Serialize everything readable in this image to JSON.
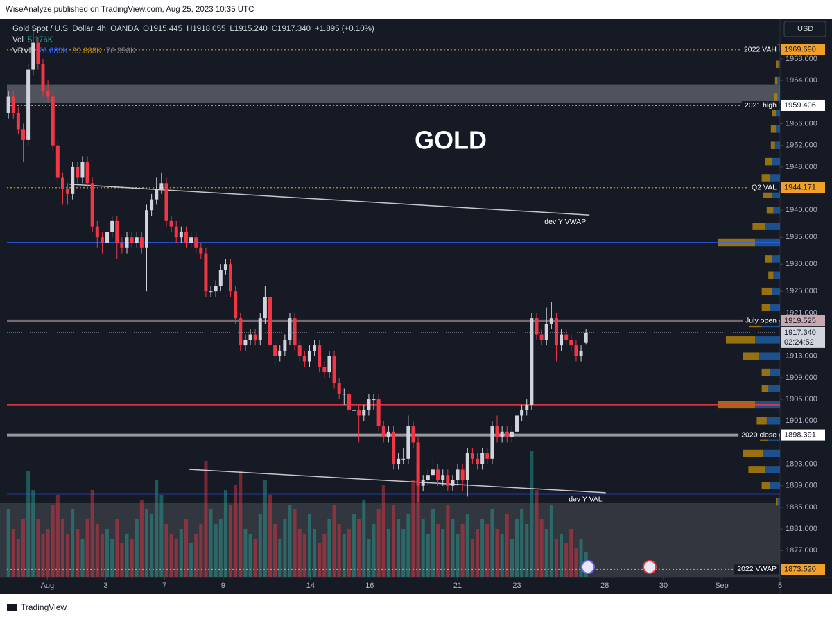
{
  "chart_data": {
    "type": "candlestick",
    "title": "GOLD",
    "publisher": "WiseAnalyze published on TradingView.com, Aug 25, 2023 10:35 UTC",
    "symbol": "Gold Spot / U.S. Dollar, 4h, OANDA",
    "ohlc_text": [
      "O1915.445",
      "H1918.055",
      "L1915.240",
      "C1917.340",
      "+1.895 (+0.10%)"
    ],
    "volume_legend": {
      "name": "Vol",
      "value": "5.176K"
    },
    "vrvp_legend": {
      "name": "VRVP",
      "values": [
        "76.689K",
        "39.888K",
        "76.356K"
      ]
    },
    "currency": "USD",
    "brand": "TradingView",
    "up_color": "#d1d4dc",
    "down_color": "#f23645",
    "volume_up_color": "#26a69a",
    "volume_down_color": "#f23645",
    "xlim": [
      -0.3,
      156.3
    ],
    "xticks": [
      {
        "value": 7.9,
        "label": "Aug"
      },
      {
        "value": 19.7,
        "label": "3"
      },
      {
        "value": 31.6,
        "label": "7"
      },
      {
        "value": 43.5,
        "label": "9"
      },
      {
        "value": 61.2,
        "label": "14"
      },
      {
        "value": 73.2,
        "label": "16"
      },
      {
        "value": 91.0,
        "label": "21"
      },
      {
        "value": 103.0,
        "label": "23"
      },
      {
        "value": 120.8,
        "label": "28"
      },
      {
        "value": 132.7,
        "label": "30"
      },
      {
        "value": 144.5,
        "label": "Sep"
      },
      {
        "value": 156.3,
        "label": "5"
      }
    ],
    "ylim": [
      1872.04,
      1975.31
    ],
    "yticks": [
      {
        "value": 1968,
        "label": "1968.000"
      },
      {
        "value": 1964,
        "label": "1964.000"
      },
      {
        "value": 1956,
        "label": "1956.000"
      },
      {
        "value": 1952,
        "label": "1952.000"
      },
      {
        "value": 1948,
        "label": "1948.000"
      },
      {
        "value": 1940,
        "label": "1940.000"
      },
      {
        "value": 1935,
        "label": "1935.000"
      },
      {
        "value": 1930,
        "label": "1930.000"
      },
      {
        "value": 1925,
        "label": "1925.000"
      },
      {
        "value": 1921,
        "label": "1921.000"
      },
      {
        "value": 1913,
        "label": "1913.000"
      },
      {
        "value": 1909,
        "label": "1909.000"
      },
      {
        "value": 1905,
        "label": "1905.000"
      },
      {
        "value": 1901,
        "label": "1901.000"
      },
      {
        "value": 1893,
        "label": "1893.000"
      },
      {
        "value": 1889,
        "label": "1889.000"
      },
      {
        "value": 1885,
        "label": "1885.000"
      },
      {
        "value": 1881,
        "label": "1881.000"
      },
      {
        "value": 1877,
        "label": "1877.000"
      }
    ],
    "grid": false,
    "candles": {
      "open": [
        1958,
        1961,
        1958,
        1955,
        1953,
        1966,
        1971,
        1967,
        1962,
        1961,
        1952,
        1946,
        1944,
        1943,
        1948,
        1946,
        1949,
        1945,
        1937,
        1935,
        1934,
        1936,
        1938,
        1934,
        1933,
        1935,
        1934,
        1935,
        1933,
        1940,
        1942,
        1944,
        1945,
        1938,
        1937,
        1935,
        1936,
        1934,
        1935,
        1933,
        1932,
        1925,
        1925,
        1926,
        1929,
        1930,
        1925,
        1920,
        1915,
        1916,
        1917,
        1916,
        1920,
        1924,
        1915,
        1913,
        1914,
        1916,
        1920,
        1915,
        1913,
        1912,
        1914,
        1915,
        1911,
        1910,
        1913,
        1908,
        1906,
        1906,
        1903,
        1903,
        1902,
        1903,
        1905,
        1905,
        1900,
        1898,
        1899,
        1893,
        1894,
        1894,
        1900,
        1897,
        1889,
        1890,
        1891,
        1892,
        1890,
        1891,
        1889,
        1890,
        1892,
        1890,
        1895,
        1894,
        1893,
        1895,
        1894,
        1900,
        1898,
        1899,
        1898,
        1899,
        1902,
        1903,
        1904,
        1920,
        1917,
        1916,
        1919,
        1920,
        1915,
        1917,
        1916,
        1915,
        1913,
        1915.445
      ],
      "high": [
        1962,
        1962,
        1959,
        1956,
        1967,
        1974,
        1972,
        1968,
        1964,
        1962,
        1953,
        1947,
        1945,
        1949,
        1949,
        1950,
        1950,
        1946,
        1938,
        1936,
        1937,
        1939,
        1939,
        1935,
        1936,
        1936,
        1936,
        1936,
        1941,
        1943,
        1946,
        1947,
        1946,
        1939,
        1938,
        1937,
        1937,
        1936,
        1936,
        1934,
        1933,
        1926,
        1927,
        1930,
        1931,
        1931,
        1926,
        1921,
        1917,
        1918,
        1918,
        1921,
        1926,
        1925,
        1916,
        1915,
        1917,
        1921,
        1921,
        1916,
        1914,
        1915,
        1916,
        1916,
        1912,
        1914,
        1914,
        1909,
        1907,
        1907,
        1904,
        1904,
        1904,
        1906,
        1906,
        1906,
        1901,
        1900,
        1900,
        1895,
        1896,
        1902,
        1901,
        1898,
        1891,
        1892,
        1894,
        1893,
        1892,
        1892,
        1891,
        1893,
        1893,
        1896,
        1896,
        1895,
        1896,
        1896,
        1901,
        1902,
        1900,
        1900,
        1900,
        1903,
        1904,
        1905,
        1921,
        1921,
        1918,
        1922,
        1923,
        1921,
        1918,
        1918,
        1917,
        1916,
        1915,
        1918.055
      ],
      "low": [
        1957,
        1957,
        1954,
        1949,
        1952,
        1965,
        1966,
        1961,
        1960,
        1951,
        1945,
        1941,
        1941,
        1942,
        1945,
        1945,
        1944,
        1936,
        1933,
        1932,
        1933,
        1935,
        1931,
        1932,
        1932,
        1933,
        1933,
        1932,
        1925,
        1939,
        1941,
        1943,
        1937,
        1936,
        1934,
        1934,
        1933,
        1933,
        1932,
        1931,
        1924,
        1924,
        1924,
        1925,
        1928,
        1924,
        1919,
        1914,
        1914,
        1915,
        1915,
        1915,
        1919,
        1914,
        1911,
        1912,
        1913,
        1915,
        1914,
        1912,
        1911,
        1911,
        1913,
        1910,
        1909,
        1909,
        1907,
        1905,
        1904,
        1902,
        1902,
        1897,
        1901,
        1902,
        1903,
        1899,
        1897,
        1897,
        1892,
        1892,
        1893,
        1893,
        1896,
        1886,
        1888,
        1889,
        1890,
        1889,
        1889,
        1888,
        1888,
        1889,
        1888,
        1887,
        1893,
        1892,
        1892,
        1893,
        1893,
        1897,
        1897,
        1897,
        1897,
        1898,
        1901,
        1902,
        1903,
        1916,
        1915,
        1915,
        1918,
        1912,
        1914,
        1915,
        1914,
        1912,
        1912,
        1915.24
      ],
      "close": [
        1961,
        1958,
        1955,
        1953,
        1966,
        1971,
        1967,
        1962,
        1961,
        1952,
        1946,
        1944,
        1943,
        1948,
        1946,
        1949,
        1945,
        1937,
        1935,
        1934,
        1936,
        1938,
        1934,
        1933,
        1935,
        1934,
        1935,
        1933,
        1940,
        1942,
        1944,
        1945,
        1938,
        1937,
        1935,
        1936,
        1934,
        1935,
        1933,
        1932,
        1925,
        1925,
        1926,
        1929,
        1930,
        1925,
        1920,
        1915,
        1916,
        1917,
        1916,
        1920,
        1924,
        1915,
        1913,
        1914,
        1916,
        1920,
        1915,
        1913,
        1912,
        1914,
        1915,
        1911,
        1910,
        1913,
        1908,
        1906,
        1906,
        1903,
        1903,
        1902,
        1903,
        1905,
        1905,
        1900,
        1898,
        1899,
        1893,
        1894,
        1894,
        1900,
        1897,
        1889,
        1890,
        1891,
        1892,
        1890,
        1891,
        1889,
        1890,
        1892,
        1890,
        1895,
        1894,
        1893,
        1895,
        1894,
        1900,
        1898,
        1899,
        1898,
        1899,
        1902,
        1903,
        1904,
        1920,
        1917,
        1916,
        1919,
        1920,
        1915,
        1917,
        1916,
        1915,
        1913,
        1914,
        1917.34
      ],
      "volume": [
        14,
        10,
        8,
        12,
        22,
        18,
        12,
        9,
        10,
        15,
        17,
        12,
        9,
        14,
        10,
        8,
        12,
        18,
        11,
        9,
        10,
        8,
        12,
        7,
        9,
        8,
        12,
        16,
        14,
        13,
        20,
        17,
        11,
        9,
        8,
        10,
        12,
        7,
        9,
        11,
        24,
        14,
        11,
        12,
        18,
        15,
        19,
        22,
        10,
        9,
        8,
        13,
        20,
        17,
        11,
        8,
        12,
        15,
        14,
        10,
        9,
        13,
        10,
        7,
        9,
        12,
        15,
        11,
        9,
        10,
        13,
        12,
        16,
        8,
        11,
        14,
        19,
        10,
        15,
        12,
        10,
        13,
        20,
        24,
        12,
        9,
        14,
        11,
        10,
        15,
        12,
        9,
        11,
        13,
        8,
        10,
        12,
        11,
        14,
        10,
        9,
        13,
        8,
        12,
        14,
        11,
        26,
        18,
        12,
        10,
        15,
        8,
        9,
        7,
        10,
        6,
        8,
        5.176
      ]
    },
    "volume_lim": [
      0,
      30
    ],
    "levels": [
      {
        "name": "2022 VAH",
        "value": 1969.69,
        "label": "1969.690",
        "color": "#f0a028",
        "style": "dotted"
      },
      {
        "name": "2021 high",
        "value": 1959.406,
        "label": "1959.406",
        "color": "#ffffff",
        "style": "dotted"
      },
      {
        "name": "Q2 VAL",
        "value": 1944.171,
        "label": "1944.171",
        "color": "#f0a028",
        "style": "dotted"
      },
      {
        "name": "July open",
        "value": 1919.525,
        "label": "1919.525",
        "color": "#c9a8b0",
        "style": "solid"
      },
      {
        "name": "2020 close",
        "value": 1898.391,
        "label": "1898.391",
        "color": "#ffffff",
        "style": "solid"
      },
      {
        "name": "2022 VWAP",
        "value": 1873.52,
        "label": "1873.520",
        "color": "#f0a028",
        "style": "dotted"
      }
    ],
    "last_price": {
      "value": 1917.34,
      "label": "1917.340",
      "countdown": "02:24:52"
    },
    "plain_lines": [
      {
        "value": 1934,
        "color": "#2962ff"
      },
      {
        "value": 1887.5,
        "color": "#2962ff"
      },
      {
        "value": 1904,
        "color": "#f23645"
      }
    ],
    "zone": [
      1959.9,
      1963.3
    ],
    "trendlines": [
      {
        "name": "dev Y VWAP",
        "x": [
          12.4,
          117.7
        ],
        "y": [
          1944.8,
          1939.1
        ]
      },
      {
        "name": "dev Y VAL",
        "x": [
          36.5,
          121
        ],
        "y": [
          1892.05,
          1887.7
        ]
      }
    ],
    "profile": {
      "prices": [
        1886,
        1889,
        1892,
        1895,
        1898,
        1901,
        1904,
        1907,
        1910,
        1913,
        1916,
        1919,
        1922,
        1925,
        1928,
        1931,
        1934,
        1937,
        1940,
        1943,
        1946,
        1949,
        1952,
        1955,
        1958,
        1961,
        1964,
        1967,
        1970
      ],
      "up": [
        3,
        12,
        18,
        20,
        14,
        16,
        30,
        14,
        12,
        25,
        30,
        22,
        12,
        10,
        8,
        10,
        30,
        18,
        8,
        10,
        12,
        10,
        6,
        5,
        5,
        3,
        3,
        2,
        1
      ],
      "down": [
        2,
        10,
        20,
        25,
        10,
        12,
        45,
        8,
        10,
        20,
        35,
        15,
        10,
        12,
        6,
        8,
        45,
        15,
        8,
        10,
        10,
        8,
        5,
        6,
        5,
        4,
        3,
        3,
        2
      ],
      "xlim": [
        0,
        100
      ],
      "up_color": "#1f5fa8",
      "down_color": "#b8860b"
    }
  }
}
